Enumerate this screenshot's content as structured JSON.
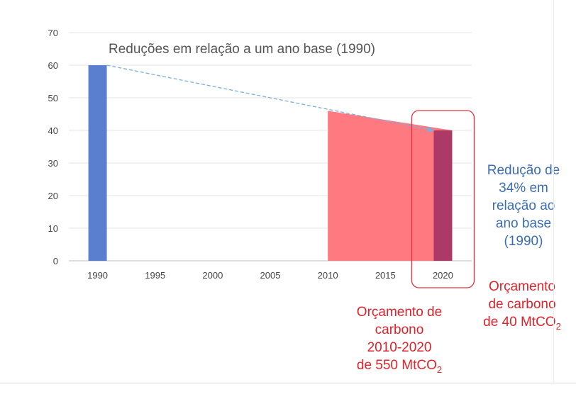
{
  "chart_data": {
    "type": "bar",
    "title": "Reduções em relação a um ano base (1990)",
    "x_ticks": [
      "1990",
      "1995",
      "2000",
      "2005",
      "2010",
      "2015",
      "2020"
    ],
    "y_ticks": [
      "0",
      "10",
      "20",
      "30",
      "40",
      "50",
      "60",
      "70"
    ],
    "ylim": [
      0,
      70
    ],
    "grid": true,
    "series": [
      {
        "type": "bar",
        "x": 1990,
        "value": 60,
        "color": "#5b7fcf"
      },
      {
        "type": "area",
        "x": [
          2010,
          2020
        ],
        "values": [
          46,
          40
        ],
        "color": "#ff7a80"
      },
      {
        "type": "bar",
        "x": 2020,
        "value": 40,
        "color": "#ad3a66"
      }
    ],
    "trend_arrow": {
      "from": [
        1990,
        60
      ],
      "to": [
        2020,
        40
      ],
      "color": "#7aaee0"
    },
    "highlight_box": {
      "x": 2020,
      "color": "#e0303a"
    }
  },
  "annotations": {
    "reduction": {
      "lines": [
        "Redução de",
        "34% em",
        "relação ao",
        "ano base",
        "(1990)"
      ],
      "color": "#3a6db5"
    },
    "budget_2020": {
      "lines": [
        "Orçamento",
        "de carbono"
      ],
      "last_prefix": "de 40 MtCO",
      "subscript": "2",
      "color": "#e0222a"
    },
    "budget_period": {
      "lines": [
        "Orçamento de",
        "carbono",
        "2010-2020"
      ],
      "last_prefix": "de 550 MtCO",
      "subscript": "2",
      "color": "#e0222a"
    }
  }
}
